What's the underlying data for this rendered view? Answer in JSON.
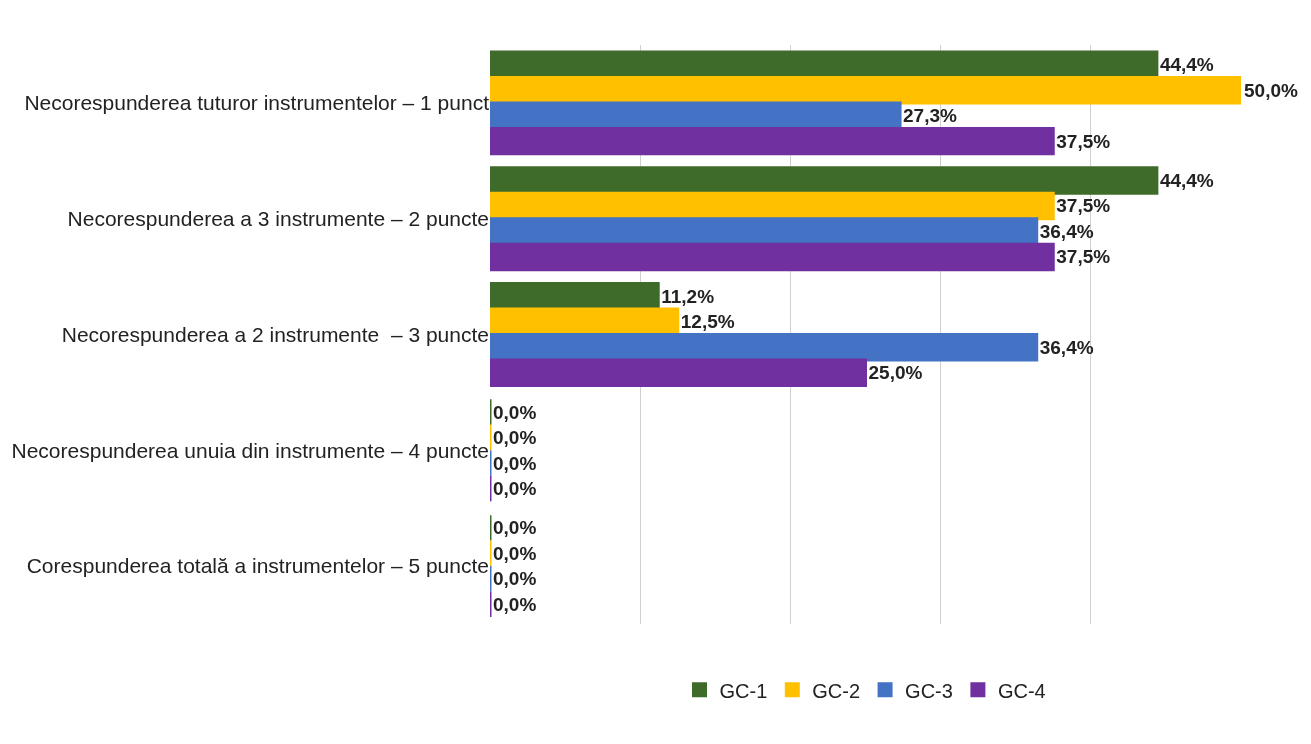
{
  "chart_data": {
    "type": "bar",
    "orientation": "horizontal",
    "categories": [
      "Necorespunderea tuturor instrumentelor – 1 punct",
      "Necorespunderea a 3 instrumente – 2 puncte",
      "Necorespunderea a 2 instrumente  – 3 puncte",
      "Necorespunderea unuia din instrumente – 4 puncte",
      "Corespunderea totală a instrumentelor – 5 puncte"
    ],
    "series": [
      {
        "name": "GC-1",
        "color": "#3f6b2a",
        "values": [
          44.4,
          44.4,
          11.2,
          0,
          0
        ],
        "value_labels": [
          "44,4%",
          "44,4%",
          "11,2%",
          "0,0%",
          "0,0%"
        ]
      },
      {
        "name": "GC-2",
        "color": "#ffc000",
        "values": [
          50.0,
          37.5,
          12.5,
          0,
          0
        ],
        "value_labels": [
          "50,0%",
          "37,5%",
          "12,5%",
          "0,0%",
          "0,0%"
        ]
      },
      {
        "name": "GC-3",
        "color": "#4472c4",
        "values": [
          27.3,
          36.4,
          36.4,
          0,
          0
        ],
        "value_labels": [
          "27,3%",
          "36,4%",
          "36,4%",
          "0,0%",
          "0,0%"
        ]
      },
      {
        "name": "GC-4",
        "color": "#7030a0",
        "values": [
          37.5,
          37.5,
          25.0,
          0,
          0
        ],
        "value_labels": [
          "37,5%",
          "37,5%",
          "25,0%",
          "0,0%",
          "0,0%"
        ]
      }
    ],
    "xlim": [
      0,
      50
    ],
    "grid": "x",
    "tick_labels": "y",
    "legend": "bottom"
  }
}
